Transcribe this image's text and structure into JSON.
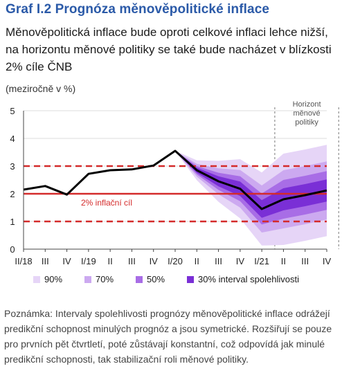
{
  "header": {
    "title": "Graf I.2 Prognóza měnověpolitické inflace",
    "subtitle": "Měnověpolitická inflace bude oproti celkové inflaci lehce nižší, na horizontu měnové politiky se také bude nacházet v blízkosti 2% cíle ČNB",
    "unit": "(meziročně v %)"
  },
  "note": "Poznámka: Intervaly spolehlivosti prognózy měnověpolitické inflace odrážejí predikční schopnost minulých prognóz a jsou symetrické. Rozšiřují se pouze pro prvních pět čtvrtletí, poté zůstávají konstantní, což odpovídá jak minulé predikční schopnosti, tak stabilizační roli měnové politiky.",
  "colors": {
    "band90": "#e6d5f7",
    "band70": "#cca9f0",
    "band50": "#a86de6",
    "band30": "#7a2fd6",
    "line": "#000000",
    "target": "#d42a2a"
  },
  "chart_data": {
    "type": "line",
    "categories": [
      "II/18",
      "III",
      "IV",
      "I/19",
      "II",
      "III",
      "IV",
      "I/20",
      "II",
      "III",
      "IV",
      "I/21",
      "II",
      "III",
      "IV"
    ],
    "ylim": [
      0,
      5
    ],
    "yticks": [
      0,
      1,
      2,
      3,
      4,
      5
    ],
    "series": [
      {
        "values": [
          2.15,
          2.28,
          1.97,
          2.72,
          2.85,
          2.88,
          3.02,
          3.55,
          2.85,
          2.45,
          2.18,
          1.45,
          1.8,
          1.95,
          2.12
        ]
      }
    ],
    "target": {
      "value": 2,
      "band": [
        1,
        3
      ],
      "label": "2% inflační cíl"
    },
    "horizon": {
      "label": "Horizont\nměnové\npolitiky",
      "from": "II/21",
      "to": "IV"
    },
    "fan": {
      "start_index": 7,
      "center": [
        3.55,
        2.85,
        2.45,
        2.18,
        1.45,
        1.8,
        1.95,
        2.12
      ],
      "half_widths": {
        "90": [
          0,
          0.36,
          0.74,
          1.07,
          1.32,
          1.65,
          1.65,
          1.65
        ],
        "70": [
          0,
          0.23,
          0.47,
          0.68,
          0.85,
          1.05,
          1.05,
          1.05
        ],
        "50": [
          0,
          0.15,
          0.31,
          0.45,
          0.56,
          0.7,
          0.7,
          0.7
        ],
        "30": [
          0,
          0.09,
          0.18,
          0.26,
          0.32,
          0.4,
          0.4,
          0.4
        ]
      }
    },
    "legend": [
      "90%",
      "70%",
      "50%",
      "30% interval spolehlivosti"
    ]
  }
}
